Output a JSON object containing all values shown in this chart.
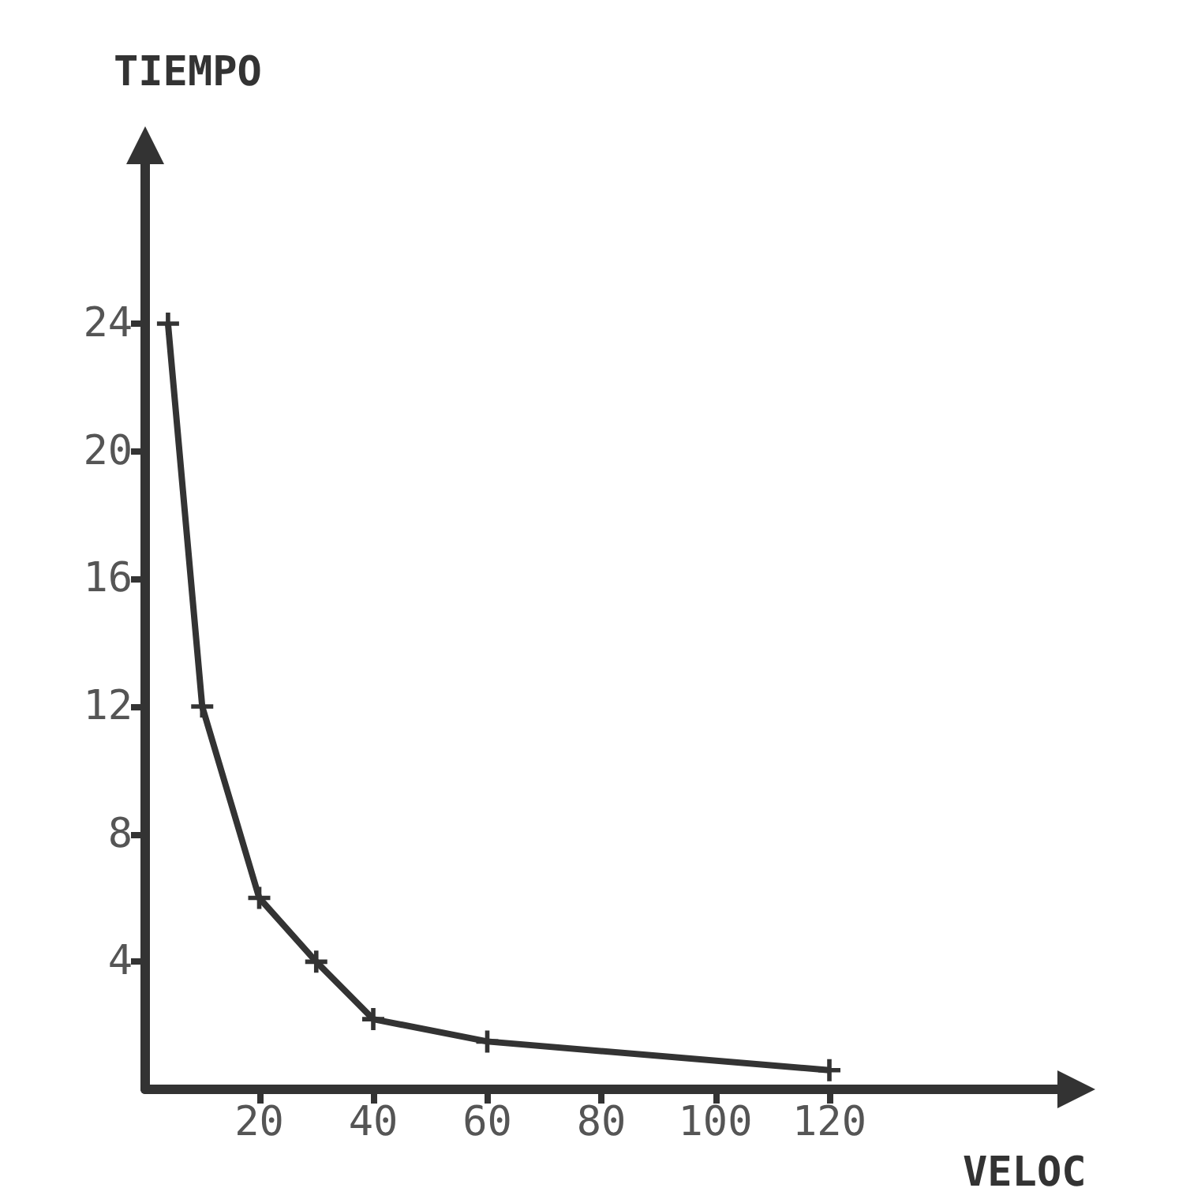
{
  "chart_data": {
    "type": "line",
    "ylabel": "TIEMPO",
    "xlabel": "VELOC",
    "x": [
      4,
      10,
      20,
      30,
      40,
      60,
      120
    ],
    "values": [
      24,
      12,
      6,
      4,
      2.2,
      1.5,
      0.6
    ],
    "color": "#333333",
    "marker": "cross",
    "line_style": "solid",
    "xlim": [
      0,
      160
    ],
    "ylim": [
      0,
      29
    ],
    "xticks": [
      20,
      40,
      60,
      80,
      100,
      120
    ],
    "yticks": [
      4,
      8,
      12,
      16,
      20,
      24
    ],
    "grid": false
  }
}
